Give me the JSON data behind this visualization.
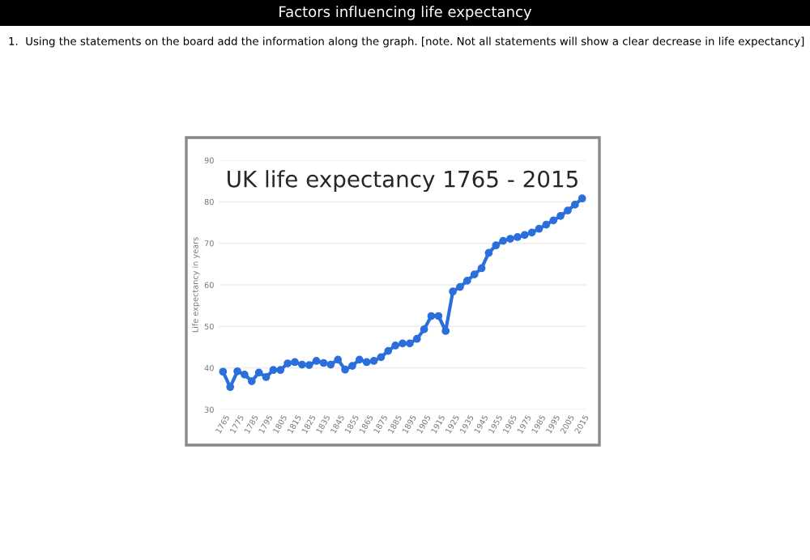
{
  "chart_data": {
    "type": "line",
    "title": "UK life expectancy 1765 - 2015",
    "ylabel": "Life expectancy in years",
    "annotations": [
      "Factors influencing life expectancy",
      "1.  Using the statements on the board add the information along the graph. [note. Not all statements will show a clear decrease in life expectancy]"
    ],
    "x": [
      1765,
      1770,
      1775,
      1780,
      1785,
      1790,
      1795,
      1800,
      1805,
      1810,
      1815,
      1820,
      1825,
      1830,
      1835,
      1840,
      1845,
      1850,
      1855,
      1860,
      1865,
      1870,
      1875,
      1880,
      1885,
      1890,
      1895,
      1900,
      1905,
      1910,
      1915,
      1920,
      1925,
      1930,
      1935,
      1940,
      1945,
      1950,
      1955,
      1960,
      1965,
      1970,
      1975,
      1980,
      1985,
      1990,
      1995,
      2000,
      2005,
      2010,
      2015
    ],
    "series": [
      {
        "color": "#2a6fdb",
        "values": [
          39.1,
          35.4,
          39.2,
          38.4,
          36.8,
          38.9,
          37.8,
          39.5,
          39.5,
          41.1,
          41.4,
          40.8,
          40.7,
          41.7,
          41.2,
          40.8,
          42.0,
          39.6,
          40.5,
          42.0,
          41.4,
          41.7,
          42.6,
          44.1,
          45.4,
          45.9,
          45.9,
          47.0,
          49.3,
          52.5,
          52.5,
          48.9,
          58.4,
          59.5,
          61.0,
          62.5,
          64.0,
          67.7,
          69.5,
          70.6,
          71.1,
          71.5,
          72.0,
          72.6,
          73.5,
          74.5,
          75.5,
          76.6,
          77.9,
          79.3,
          80.8
        ]
      }
    ],
    "xlim": [
      1762,
      2018
    ],
    "xticks": [
      1765,
      1775,
      1785,
      1795,
      1805,
      1815,
      1825,
      1835,
      1845,
      1855,
      1865,
      1875,
      1885,
      1895,
      1905,
      1915,
      1925,
      1935,
      1945,
      1955,
      1965,
      1975,
      1985,
      1995,
      2005,
      2015
    ],
    "ylim": [
      30,
      90
    ],
    "yticks": [
      30,
      40,
      50,
      60,
      70,
      80,
      90
    ],
    "grid": "y",
    "marker": "circle",
    "line_style": "solid"
  }
}
